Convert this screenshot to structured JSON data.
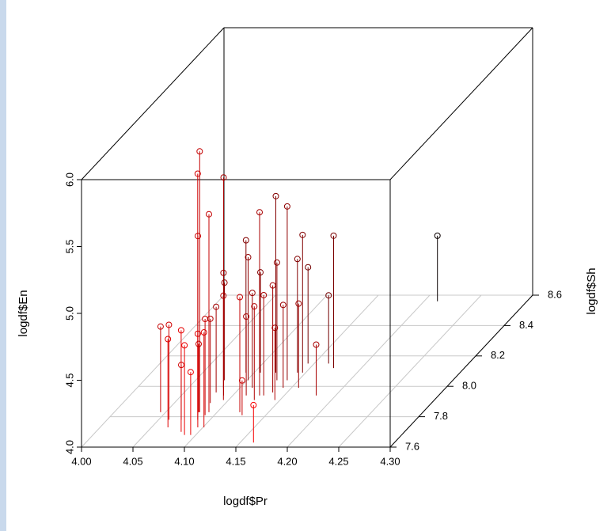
{
  "chart_data": {
    "type": "scatter3d",
    "xlabel": "logdf$Pr",
    "ylabel": "logdf$Sh",
    "zlabel": "logdf$En",
    "xlim": [
      4.0,
      4.3
    ],
    "ylim": [
      7.6,
      8.6
    ],
    "zlim": [
      4.0,
      6.0
    ],
    "xticks": [
      {
        "value": 4.0,
        "label": "4.00"
      },
      4.05,
      {
        "value": 4.1,
        "label": "4.10"
      },
      4.15,
      {
        "value": 4.2,
        "label": "4.20"
      },
      4.25,
      {
        "value": 4.3,
        "label": "4.30"
      }
    ],
    "yticks": [
      7.6,
      7.8,
      {
        "value": 8.0,
        "label": "8.0"
      },
      8.2,
      8.4,
      8.6
    ],
    "zticks": [
      {
        "value": 4.0,
        "label": "4.0"
      },
      4.5,
      {
        "value": 5.0,
        "label": "5.0"
      },
      5.5,
      {
        "value": 6.0,
        "label": "6.0"
      }
    ],
    "grid": true,
    "color_near": "#ff0000",
    "color_far": "#000000",
    "x": [
      4.045,
      4.06,
      4.066,
      4.083,
      4.089,
      4.072,
      4.095,
      4.083,
      4.088,
      4.084,
      4.092,
      4.091,
      4.095,
      4.082,
      4.101,
      4.091,
      4.085,
      4.081,
      4.084,
      4.078,
      4.095,
      4.122,
      4.127,
      4.092,
      4.101,
      4.112,
      4.113,
      4.163,
      4.125,
      4.126,
      4.106,
      4.13,
      4.136,
      4.145,
      4.121,
      4.129,
      4.142,
      4.139,
      4.142,
      4.157,
      4.147,
      4.144,
      4.181,
      4.164,
      4.173,
      4.213
    ],
    "y": [
      7.83,
      7.78,
      7.73,
      7.7,
      7.68,
      7.78,
      7.68,
      7.83,
      7.78,
      7.81,
      7.83,
      7.94,
      7.73,
      7.83,
      7.73,
      7.81,
      7.89,
      7.96,
      7.99,
      8.04,
      7.91,
      7.83,
      7.81,
      8.09,
      8.04,
      7.99,
      7.94,
      7.63,
      7.91,
      7.94,
      8.09,
      7.94,
      7.96,
      7.91,
      8.09,
      8.04,
      7.99,
      8.04,
      8.09,
      7.99,
      8.09,
      8.15,
      7.94,
      8.15,
      8.12,
      8.56
    ],
    "z": [
      4.64,
      4.71,
      4.66,
      4.76,
      4.67,
      4.41,
      4.47,
      5.95,
      5.84,
      5.34,
      5.48,
      5.63,
      4.7,
      4.51,
      4.71,
      4.72,
      4.63,
      4.64,
      4.86,
      4.73,
      4.78,
      4.86,
      4.26,
      4.99,
      4.92,
      4.71,
      4.59,
      4.28,
      4.7,
      5.37,
      4.75,
      4.75,
      4.8,
      4.54,
      5.32,
      4.88,
      4.62,
      5.3,
      4.85,
      4.63,
      5.03,
      4.72,
      4.38,
      4.51,
      4.99,
      4.49
    ]
  }
}
